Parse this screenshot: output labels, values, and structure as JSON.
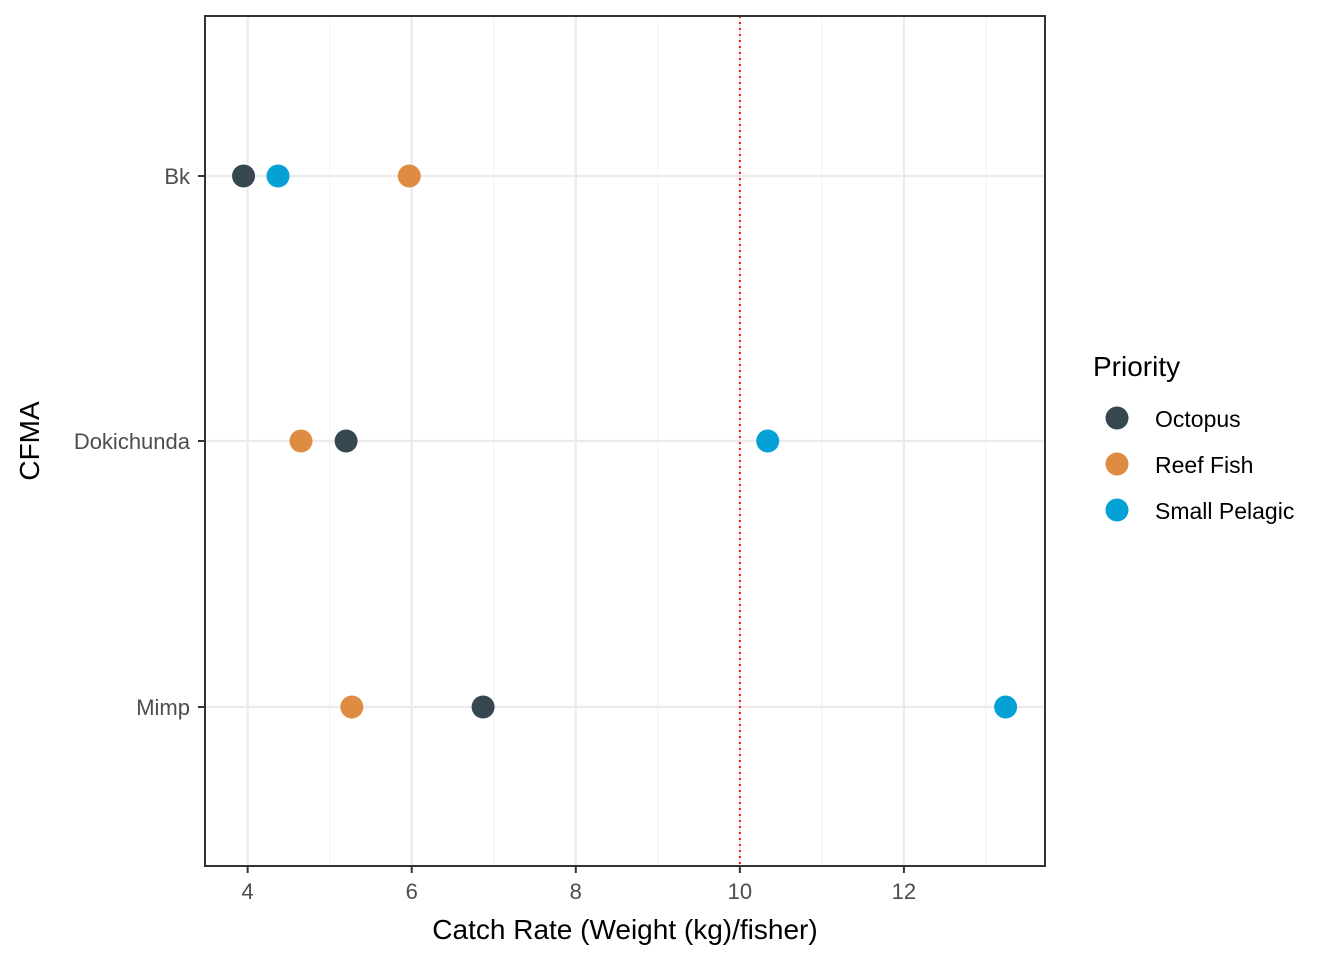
{
  "chart_data": {
    "type": "scatter",
    "title": "",
    "xlabel": "Catch Rate (Weight (kg)/fisher)",
    "ylabel": "CFMA",
    "xlim": [
      3.48,
      13.72
    ],
    "x_ticks": [
      4,
      6,
      8,
      10,
      12
    ],
    "categories": [
      "Bk",
      "Dokichunda",
      "Mimp"
    ],
    "reference_line": {
      "x": 10,
      "style": "dotted",
      "color": "#ff0000"
    },
    "grid": true,
    "legend": {
      "title": "Priority",
      "position": "right"
    },
    "series": [
      {
        "name": "Octopus",
        "color": "#36474f",
        "values": [
          {
            "category": "Bk",
            "x": 3.95
          },
          {
            "category": "Dokichunda",
            "x": 5.2
          },
          {
            "category": "Mimp",
            "x": 6.87
          }
        ]
      },
      {
        "name": "Reef Fish",
        "color": "#df8c43",
        "values": [
          {
            "category": "Bk",
            "x": 5.97
          },
          {
            "category": "Dokichunda",
            "x": 4.65
          },
          {
            "category": "Mimp",
            "x": 5.27
          }
        ]
      },
      {
        "name": "Small Pelagic",
        "color": "#03a1d6",
        "values": [
          {
            "category": "Bk",
            "x": 4.37
          },
          {
            "category": "Dokichunda",
            "x": 10.34
          },
          {
            "category": "Mimp",
            "x": 13.24
          }
        ]
      }
    ]
  }
}
